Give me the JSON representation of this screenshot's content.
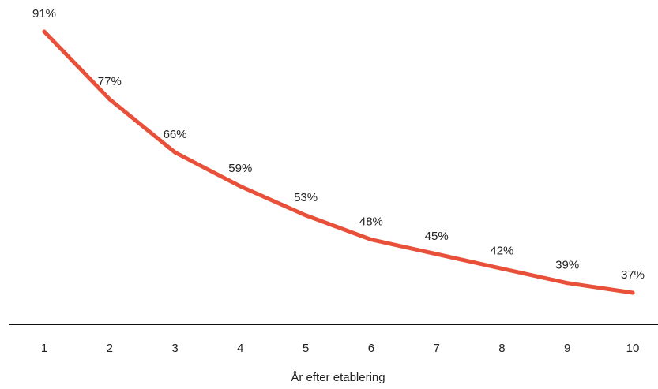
{
  "chart_data": {
    "type": "line",
    "x": [
      "1",
      "2",
      "3",
      "4",
      "5",
      "6",
      "7",
      "8",
      "9",
      "10"
    ],
    "series": [
      {
        "values": [
          91,
          77,
          66,
          59,
          53,
          48,
          45,
          42,
          39,
          37
        ],
        "labels": [
          "91%",
          "77%",
          "66%",
          "59%",
          "53%",
          "48%",
          "45%",
          "42%",
          "39%",
          "37%"
        ]
      }
    ],
    "xlabel": "År efter etablering",
    "ylabel": "",
    "data_labels": true,
    "grid": false,
    "line_color": "#e8503a",
    "axis_color": "#111111",
    "text_color": "#222222"
  }
}
